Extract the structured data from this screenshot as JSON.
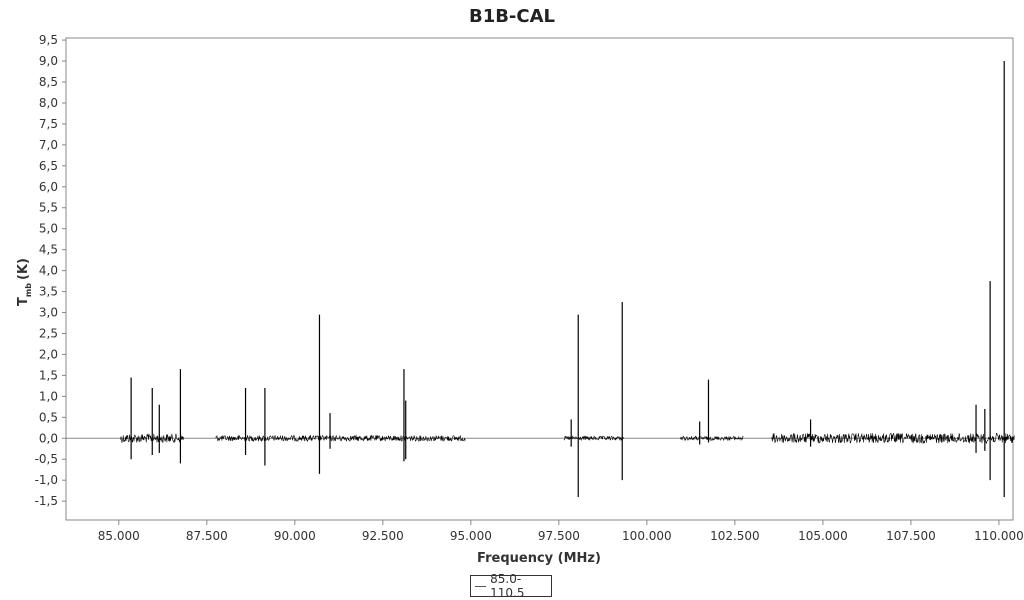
{
  "chart_data": {
    "type": "line",
    "title": "B1B-CAL",
    "xlabel": "Frequency (MHz)",
    "ylabel_main": "T",
    "ylabel_sub": "mb",
    "ylabel_unit": "(K)",
    "xlim": [
      83.5,
      110.4
    ],
    "ylim": [
      -1.95,
      9.55
    ],
    "x_ticks": [
      85.0,
      87.5,
      90.0,
      92.5,
      95.0,
      97.5,
      100.0,
      102.5,
      105.0,
      107.5,
      110.0
    ],
    "x_tick_labels": [
      "85.000",
      "87.500",
      "90.000",
      "92.500",
      "95.000",
      "97.500",
      "100.000",
      "102.500",
      "105.000",
      "107.500",
      "110.000"
    ],
    "y_ticks": [
      -1.5,
      -1.0,
      -0.5,
      0.0,
      0.5,
      1.0,
      1.5,
      2.0,
      2.5,
      3.0,
      3.5,
      4.0,
      4.5,
      5.0,
      5.5,
      6.0,
      6.5,
      7.0,
      7.5,
      8.0,
      8.5,
      9.0,
      9.5
    ],
    "y_tick_labels": [
      "-1,5",
      "-1,0",
      "-0,5",
      "0,0",
      "0,5",
      "1,0",
      "1,5",
      "2,0",
      "2,5",
      "3,0",
      "3,5",
      "4,0",
      "4,5",
      "5,0",
      "5,5",
      "6,0",
      "6,5",
      "7,0",
      "7,5",
      "8,0",
      "8,5",
      "9,0",
      "9,5"
    ],
    "grid": false,
    "legend_position": "bottom-center",
    "series": [
      {
        "name": "85.0-110.5",
        "color": "#000000",
        "noise_segments": [
          {
            "x0": 85.05,
            "x1": 86.85,
            "amp": 0.11
          },
          {
            "x0": 87.75,
            "x1": 94.85,
            "amp": 0.07
          },
          {
            "x0": 97.65,
            "x1": 99.35,
            "amp": 0.05
          },
          {
            "x0": 100.95,
            "x1": 102.75,
            "amp": 0.05
          },
          {
            "x0": 103.55,
            "x1": 110.45,
            "amp": 0.12
          }
        ],
        "lines": [
          {
            "x": 85.35,
            "max": 1.45,
            "min": -0.5
          },
          {
            "x": 85.95,
            "max": 1.2,
            "min": -0.4
          },
          {
            "x": 86.15,
            "max": 0.8,
            "min": -0.35
          },
          {
            "x": 86.75,
            "max": 1.65,
            "min": -0.6
          },
          {
            "x": 88.6,
            "max": 1.2,
            "min": -0.4
          },
          {
            "x": 89.15,
            "max": 1.2,
            "min": -0.65
          },
          {
            "x": 90.7,
            "max": 2.95,
            "min": -0.85
          },
          {
            "x": 91.0,
            "max": 0.6,
            "min": -0.25
          },
          {
            "x": 93.1,
            "max": 1.65,
            "min": -0.55
          },
          {
            "x": 93.15,
            "max": 0.9,
            "min": -0.5
          },
          {
            "x": 97.85,
            "max": 0.45,
            "min": -0.2
          },
          {
            "x": 98.05,
            "max": 2.95,
            "min": -1.4
          },
          {
            "x": 99.3,
            "max": 3.25,
            "min": -1.0
          },
          {
            "x": 101.5,
            "max": 0.4,
            "min": -0.15
          },
          {
            "x": 101.75,
            "max": 1.4,
            "min": -0.1
          },
          {
            "x": 104.65,
            "max": 0.45,
            "min": -0.2
          },
          {
            "x": 109.35,
            "max": 0.8,
            "min": -0.35
          },
          {
            "x": 109.6,
            "max": 0.7,
            "min": -0.3
          },
          {
            "x": 109.75,
            "max": 3.75,
            "min": -1.0
          },
          {
            "x": 110.15,
            "max": 9.0,
            "min": -1.4
          }
        ]
      }
    ]
  }
}
